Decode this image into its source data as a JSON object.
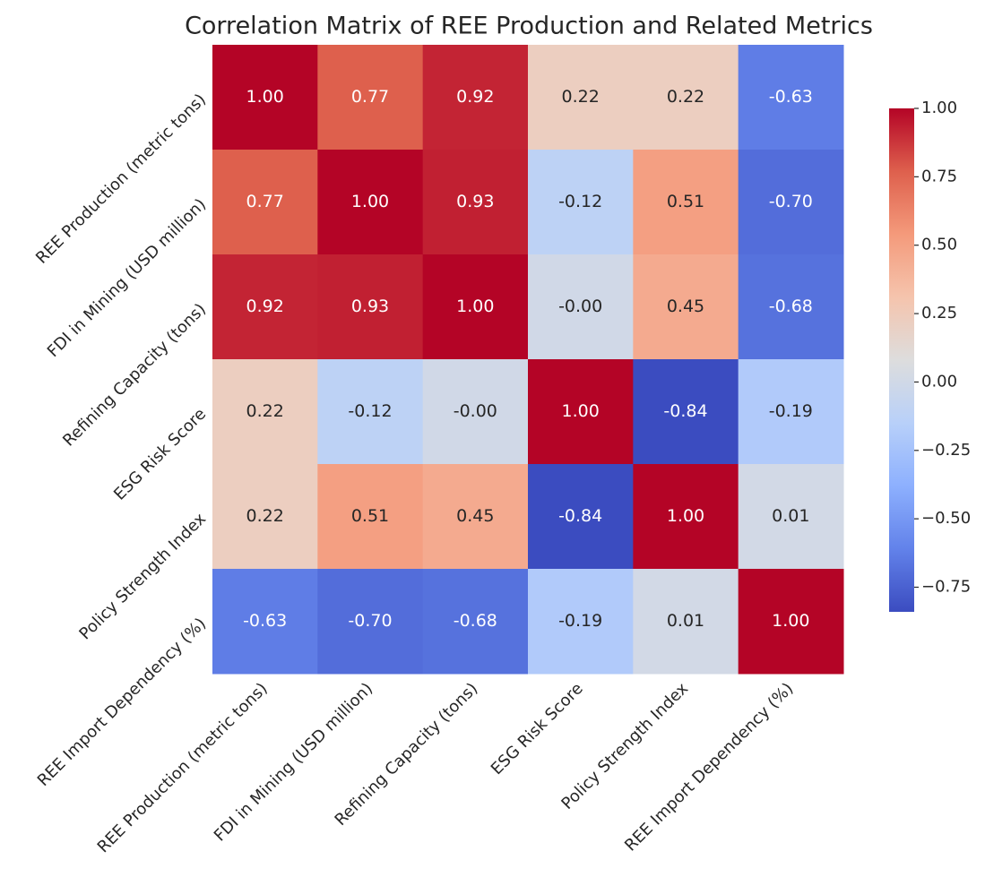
{
  "chart_data": {
    "type": "heatmap",
    "title": "Correlation Matrix of REE Production and Related Metrics",
    "categories": [
      "REE Production (metric tons)",
      "FDI in Mining (USD million)",
      "Refining Capacity (tons)",
      "ESG Risk Score",
      "Policy Strength Index",
      "REE Import Dependency (%)"
    ],
    "values": [
      [
        1.0,
        0.77,
        0.92,
        0.22,
        0.22,
        -0.63
      ],
      [
        0.77,
        1.0,
        0.93,
        -0.12,
        0.51,
        -0.7
      ],
      [
        0.92,
        0.93,
        1.0,
        -0.0,
        0.45,
        -0.68
      ],
      [
        0.22,
        -0.12,
        -0.0,
        1.0,
        -0.84,
        -0.19
      ],
      [
        0.22,
        0.51,
        0.45,
        -0.84,
        1.0,
        0.01
      ],
      [
        -0.63,
        -0.7,
        -0.68,
        -0.19,
        0.01,
        1.0
      ]
    ],
    "value_labels": [
      [
        "1.00",
        "0.77",
        "0.92",
        "0.22",
        "0.22",
        "-0.63"
      ],
      [
        "0.77",
        "1.00",
        "0.93",
        "-0.12",
        "0.51",
        "-0.70"
      ],
      [
        "0.92",
        "0.93",
        "1.00",
        "-0.00",
        "0.45",
        "-0.68"
      ],
      [
        "0.22",
        "-0.12",
        "-0.00",
        "1.00",
        "-0.84",
        "-0.19"
      ],
      [
        "0.22",
        "0.51",
        "0.45",
        "-0.84",
        "1.00",
        "0.01"
      ],
      [
        "-0.63",
        "-0.70",
        "-0.68",
        "-0.19",
        "0.01",
        "1.00"
      ]
    ],
    "colormap": "coolwarm",
    "clim": [
      -0.84,
      1.0
    ],
    "cticks": [
      {
        "value": 1.0,
        "label": "1.00"
      },
      {
        "value": 0.75,
        "label": "0.75"
      },
      {
        "value": 0.5,
        "label": "0.50"
      },
      {
        "value": 0.25,
        "label": "0.25"
      },
      {
        "value": 0.0,
        "label": "0.00"
      },
      {
        "value": -0.25,
        "label": "−0.25"
      },
      {
        "value": -0.5,
        "label": "−0.50"
      },
      {
        "value": -0.75,
        "label": "−0.75"
      }
    ]
  }
}
